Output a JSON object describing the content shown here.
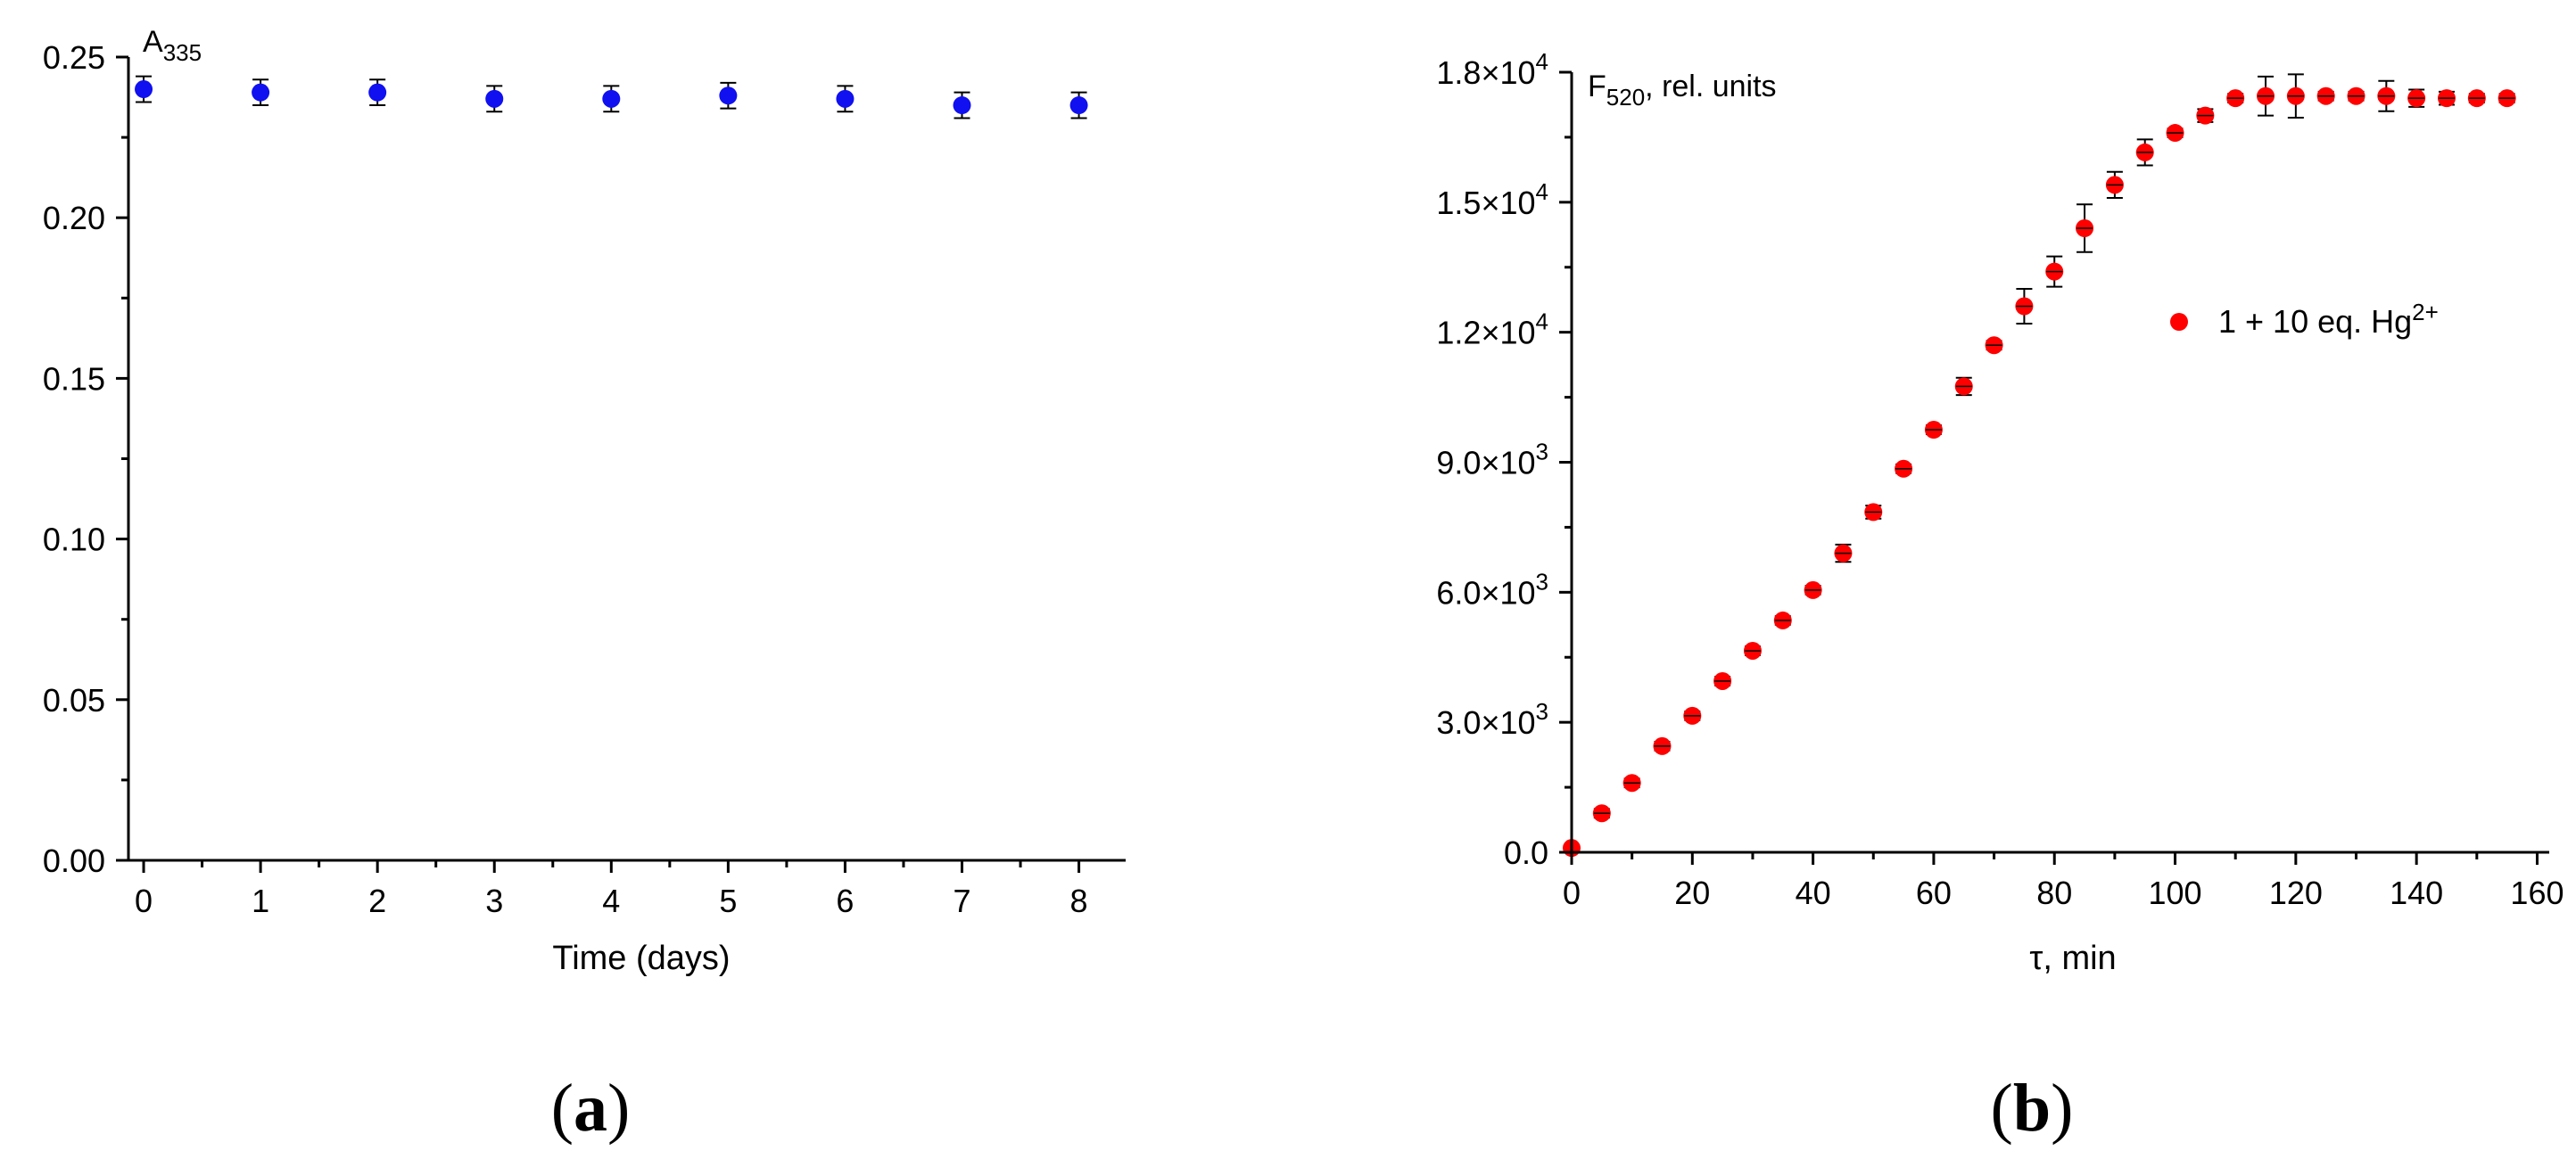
{
  "chart_data": [
    {
      "type": "scatter",
      "panel_label": "a",
      "ylabel_main": "A",
      "ylabel_sub": "335",
      "xlabel": "Time (days)",
      "xlim": [
        -0.13,
        8.4
      ],
      "ylim": [
        0,
        0.25
      ],
      "x_ticks": [
        0,
        1,
        2,
        3,
        4,
        5,
        6,
        7,
        8
      ],
      "x_tick_labels": [
        "0",
        "1",
        "2",
        "3",
        "4",
        "5",
        "6",
        "7",
        "8"
      ],
      "y_ticks": [
        0,
        0.05,
        0.1,
        0.15,
        0.2,
        0.25
      ],
      "y_tick_labels": [
        "0.00",
        "0.05",
        "0.10",
        "0.15",
        "0.20",
        "0.25"
      ],
      "grid": false,
      "marker_color": "#1010f0",
      "series": [
        {
          "x": [
            0,
            1,
            2,
            3,
            4,
            5,
            6,
            7,
            8
          ],
          "y": [
            0.24,
            0.239,
            0.239,
            0.237,
            0.237,
            0.238,
            0.237,
            0.235,
            0.235
          ],
          "err": [
            0.004,
            0.004,
            0.004,
            0.004,
            0.004,
            0.004,
            0.004,
            0.004,
            0.004
          ]
        }
      ]
    },
    {
      "type": "scatter",
      "panel_label": "b",
      "ylabel_main": "F",
      "ylabel_sub": "520",
      "ylabel_rest": ", rel. units",
      "xlabel": "τ, min",
      "xlim": [
        0,
        162
      ],
      "ylim": [
        0,
        18000
      ],
      "x_ticks": [
        0,
        20,
        40,
        60,
        80,
        100,
        120,
        140,
        160
      ],
      "x_tick_labels": [
        "0",
        "20",
        "40",
        "60",
        "80",
        "100",
        "120",
        "140",
        "160"
      ],
      "y_ticks": [
        0,
        3000,
        6000,
        9000,
        12000,
        15000,
        18000
      ],
      "y_tick_labels": [
        {
          "mantissa": "0.0",
          "exp": ""
        },
        {
          "mantissa": "3.0×10",
          "exp": "3"
        },
        {
          "mantissa": "6.0×10",
          "exp": "3"
        },
        {
          "mantissa": "9.0×10",
          "exp": "3"
        },
        {
          "mantissa": "1.2×10",
          "exp": "4"
        },
        {
          "mantissa": "1.5×10",
          "exp": "4"
        },
        {
          "mantissa": "1.8×10",
          "exp": "4"
        }
      ],
      "grid": false,
      "marker_color": "#ff0000",
      "legend_location": "right",
      "series": [
        {
          "legend_main": "1 + 10 eq. Hg",
          "legend_sup": "2+",
          "x": [
            0,
            5,
            10,
            15,
            20,
            25,
            30,
            35,
            40,
            45,
            50,
            55,
            60,
            65,
            70,
            75,
            80,
            85,
            90,
            95,
            100,
            105,
            110,
            115,
            120,
            125,
            130,
            135,
            140,
            145,
            150,
            155
          ],
          "y": [
            100,
            900,
            1600,
            2450,
            3150,
            3950,
            4650,
            5350,
            6050,
            6900,
            7850,
            8850,
            9750,
            10750,
            11700,
            12600,
            13400,
            14400,
            15400,
            16150,
            16600,
            17000,
            17400,
            17450,
            17450,
            17450,
            17450,
            17450,
            17400,
            17400,
            17400,
            17400
          ],
          "err": [
            0,
            100,
            100,
            100,
            100,
            100,
            100,
            100,
            100,
            200,
            150,
            100,
            100,
            200,
            100,
            400,
            350,
            550,
            300,
            300,
            100,
            150,
            100,
            450,
            500,
            100,
            100,
            350,
            200,
            150,
            100,
            100
          ]
        }
      ]
    }
  ]
}
